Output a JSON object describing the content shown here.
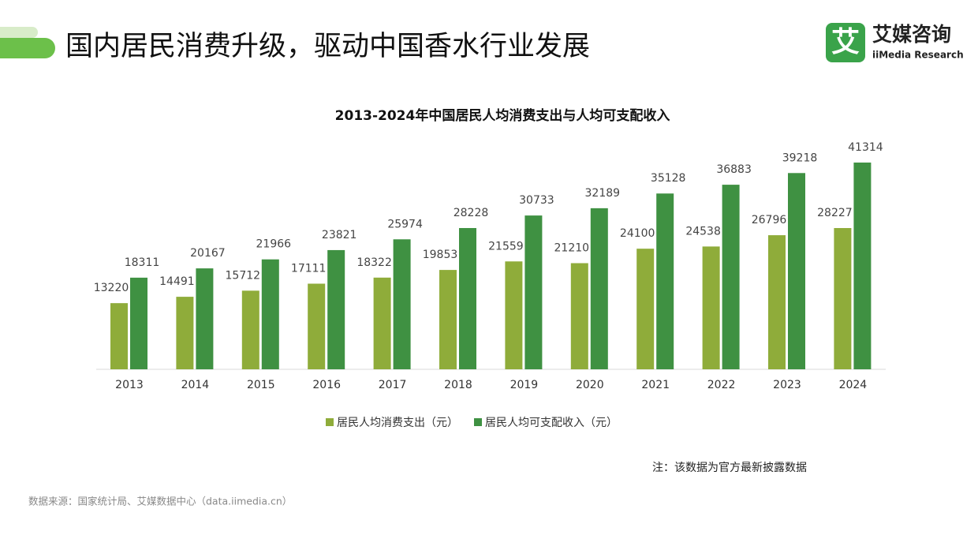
{
  "header": {
    "title": "国内居民消费升级，驱动中国香水行业发展",
    "logo_icon": "艾",
    "logo_name": "艾媒咨询",
    "logo_sub": "iiMedia Research"
  },
  "chart_data": {
    "type": "bar",
    "title": "2013-2024年中国居民人均消费支出与人均可支配收入",
    "categories": [
      "2013",
      "2014",
      "2015",
      "2016",
      "2017",
      "2018",
      "2019",
      "2020",
      "2021",
      "2022",
      "2023",
      "2024"
    ],
    "series": [
      {
        "name": "居民人均消费支出（元）",
        "color": "#8fac3a",
        "values": [
          13220,
          14491,
          15712,
          17111,
          18322,
          19853,
          21559,
          21210,
          24100,
          24538,
          26796,
          28227
        ]
      },
      {
        "name": "居民人均可支配收入（元）",
        "color": "#3f9142",
        "values": [
          18311,
          20167,
          21966,
          23821,
          25974,
          28228,
          30733,
          32189,
          35128,
          36883,
          39218,
          41314
        ]
      }
    ],
    "legend": "bottom",
    "note": "注：该数据为官方最新披露数据"
  },
  "source": "数据来源：国家统计局、艾媒数据中心（data.iimedia.cn）"
}
